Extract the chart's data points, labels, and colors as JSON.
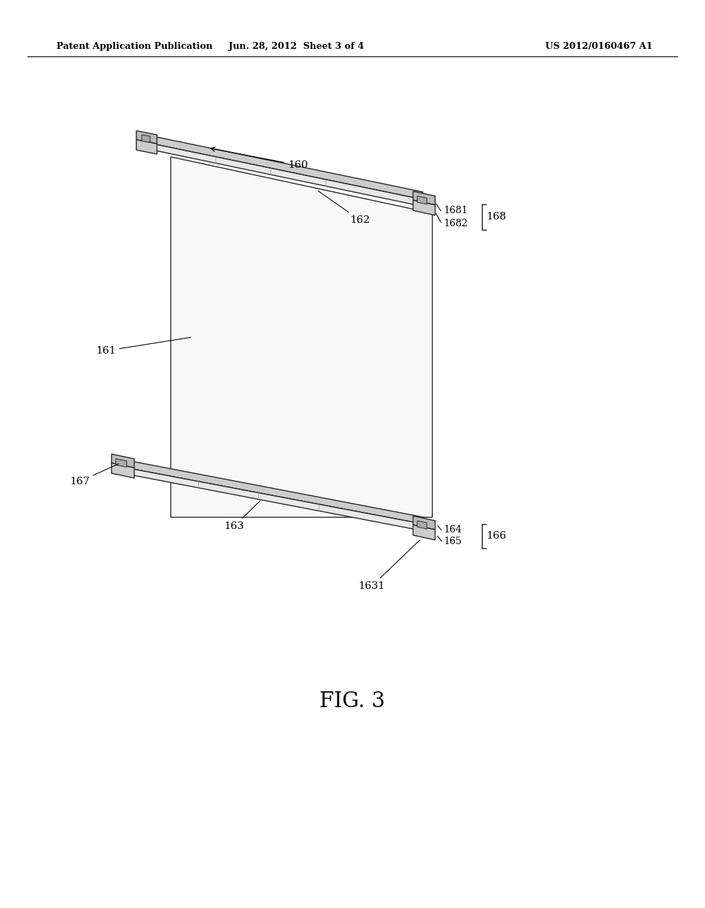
{
  "bg_color": "#ffffff",
  "header_left": "Patent Application Publication",
  "header_mid": "Jun. 28, 2012  Sheet 3 of 4",
  "header_right": "US 2012/0160467 A1",
  "figure_label": "FIG. 3",
  "line_color": "#222222",
  "panel_fill": "#f8f8f8",
  "rail_top_fill": "#cccccc",
  "rail_front_fill": "#e8e8e8",
  "block_top_fill": "#bbbbbb",
  "block_front_fill": "#dddddd"
}
